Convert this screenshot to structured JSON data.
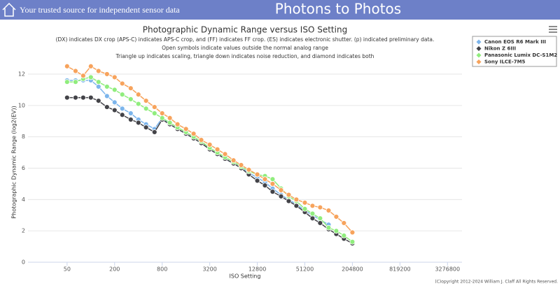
{
  "header": {
    "tagline": "Your trusted source for independent sensor data",
    "site_title": "Photons to Photos"
  },
  "chart_data": {
    "type": "line",
    "title": "Photographic Dynamic Range versus ISO Setting",
    "subtitle": [
      "(DX) indicates DX crop (APS-C) indicates APS-C crop, and (FF) indicates FF crop. (ES) indicates electronic shutter. (p) indicated preliminary data.",
      "Open symbols indicate values outside the normal analog range",
      "Triangle up indicates scaling, triangle down indicates noise reduction, and diamond indicates both"
    ],
    "x_label": "ISO Setting",
    "y_label": "Photographic Dynamic Range (log2(EV))",
    "x": [
      50,
      64,
      80,
      100,
      125,
      160,
      200,
      250,
      320,
      400,
      500,
      640,
      800,
      1000,
      1250,
      1600,
      2000,
      2500,
      3200,
      4000,
      5000,
      6400,
      8000,
      10000,
      12800,
      16000,
      20000,
      25600,
      32000,
      40000,
      51200,
      64000,
      80000,
      102400,
      128000,
      160000,
      204800
    ],
    "x_log": true,
    "xlim": [
      16,
      5000000
    ],
    "xticks": [
      50,
      200,
      800,
      3200,
      12800,
      51200,
      204800,
      819200,
      3276800
    ],
    "ylim": [
      0,
      12.7
    ],
    "yticks": [
      0,
      2,
      4,
      6,
      8,
      10,
      12
    ],
    "grid": true,
    "legend": "top-right",
    "series": [
      {
        "name": "Canon EOS R6 Mark III",
        "color": "#7cb5ec",
        "values": [
          11.6,
          11.6,
          11.6,
          11.6,
          11.2,
          10.6,
          10.2,
          9.8,
          9.5,
          9.1,
          8.8,
          8.5,
          9.2,
          8.8,
          8.5,
          8.2,
          7.9,
          7.6,
          7.2,
          6.9,
          6.6,
          6.3,
          6.0,
          5.7,
          5.4,
          5.1,
          4.7,
          4.3,
          4.0,
          3.7,
          3.3,
          3.0,
          2.7,
          2.4,
          null,
          null,
          null
        ]
      },
      {
        "name": "Nikon Z 6III",
        "color": "#434348",
        "values": [
          10.5,
          10.5,
          10.5,
          10.5,
          10.3,
          9.9,
          9.7,
          9.4,
          9.1,
          8.9,
          8.6,
          8.3,
          9.1,
          8.8,
          8.5,
          8.2,
          7.9,
          7.6,
          7.2,
          6.9,
          6.6,
          6.3,
          6.0,
          5.6,
          5.2,
          4.9,
          4.5,
          4.2,
          3.9,
          3.6,
          3.2,
          2.8,
          2.5,
          2.1,
          1.8,
          1.5,
          1.2
        ]
      },
      {
        "name": "Panasonic Lumix DC-S1M2",
        "color": "#90ed7d",
        "values": [
          11.5,
          11.5,
          11.7,
          11.8,
          11.5,
          11.2,
          11.0,
          10.7,
          10.4,
          10.1,
          9.8,
          9.5,
          9.2,
          8.9,
          8.6,
          8.3,
          8.0,
          7.7,
          7.3,
          7.0,
          6.7,
          6.4,
          6.1,
          5.8,
          5.6,
          5.5,
          5.3,
          4.7,
          4.2,
          3.9,
          3.4,
          3.1,
          2.8,
          2.2,
          2.0,
          1.7,
          1.3
        ]
      },
      {
        "name": "Sony ILCE-7M5",
        "color": "#f7a35c",
        "values": [
          12.5,
          12.2,
          11.9,
          12.5,
          12.2,
          12.0,
          11.8,
          11.4,
          11.1,
          10.7,
          10.3,
          9.9,
          9.5,
          9.2,
          8.8,
          8.5,
          8.2,
          7.8,
          7.5,
          7.2,
          6.9,
          6.5,
          6.2,
          5.9,
          5.6,
          5.3,
          5.0,
          4.6,
          4.3,
          4.0,
          3.8,
          3.6,
          3.5,
          3.3,
          2.9,
          2.5,
          1.9
        ]
      }
    ],
    "credit": "(C)opyright 2012-2024 William J. Claff All Rights Reserved."
  }
}
